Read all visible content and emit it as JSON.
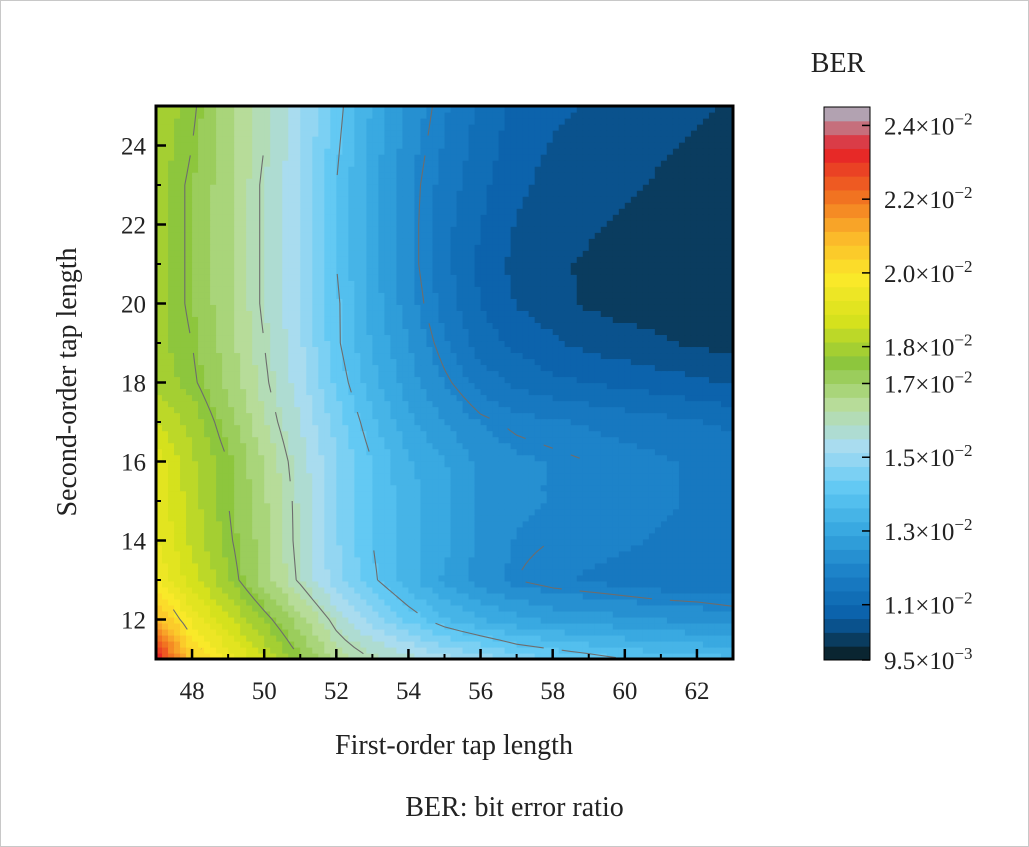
{
  "chart_data": {
    "type": "heatmap",
    "subtype": "filled-contour",
    "xlabel": "First-order tap length",
    "ylabel": "Second-order tap length",
    "xlim": [
      47,
      63
    ],
    "ylim": [
      11,
      25
    ],
    "xticks": [
      48,
      50,
      52,
      54,
      56,
      58,
      60,
      62
    ],
    "yticks": [
      12,
      14,
      16,
      18,
      20,
      22,
      24
    ],
    "colorbar": {
      "title": "BER",
      "range": [
        0.0095,
        0.0245
      ],
      "tick_labels": [
        {
          "value": 0.024,
          "mantissa": "2.4",
          "exponent": "−2"
        },
        {
          "value": 0.022,
          "mantissa": "2.2",
          "exponent": "−2"
        },
        {
          "value": 0.02,
          "mantissa": "2.0",
          "exponent": "−2"
        },
        {
          "value": 0.018,
          "mantissa": "1.8",
          "exponent": "−2"
        },
        {
          "value": 0.017,
          "mantissa": "1.7",
          "exponent": "−2"
        },
        {
          "value": 0.015,
          "mantissa": "1.5",
          "exponent": "−2"
        },
        {
          "value": 0.013,
          "mantissa": "1.3",
          "exponent": "−2"
        },
        {
          "value": 0.011,
          "mantissa": "1.1",
          "exponent": "−2"
        },
        {
          "value": 0.0095,
          "mantissa": "9.5",
          "exponent": "−3"
        }
      ],
      "colors": [
        "#0a1a1a",
        "#0a5fa8",
        "#1a7fc6",
        "#35a6df",
        "#5ec8f3",
        "#a8dcf2",
        "#b8dc9a",
        "#8cc63c",
        "#d8e21c",
        "#fbe92a",
        "#fbb62a",
        "#f06a20",
        "#e51f28",
        "#a8bccc"
      ]
    },
    "x": [
      47,
      48,
      49,
      50,
      51,
      52,
      53,
      54,
      55,
      56,
      57,
      58,
      59,
      60,
      61,
      62,
      63
    ],
    "y": [
      11,
      12,
      13,
      14,
      15,
      16,
      17,
      18,
      19,
      20,
      21,
      22,
      23,
      24,
      25
    ],
    "z": [
      [
        0.0235,
        0.0205,
        0.0195,
        0.0185,
        0.0175,
        0.0165,
        0.016,
        0.0157,
        0.0153,
        0.015,
        0.0146,
        0.0144,
        0.0142,
        0.014,
        0.0139,
        0.0138,
        0.0137
      ],
      [
        0.021,
        0.0195,
        0.0186,
        0.0177,
        0.0168,
        0.0158,
        0.015,
        0.0143,
        0.0137,
        0.0133,
        0.013,
        0.0128,
        0.0127,
        0.0126,
        0.0125,
        0.0124,
        0.0123
      ],
      [
        0.0196,
        0.0187,
        0.0178,
        0.0168,
        0.0159,
        0.0149,
        0.0141,
        0.0134,
        0.0128,
        0.0123,
        0.012,
        0.0118,
        0.0117,
        0.0116,
        0.0115,
        0.0115,
        0.0114
      ],
      [
        0.0193,
        0.0184,
        0.0176,
        0.0168,
        0.0158,
        0.0148,
        0.014,
        0.0134,
        0.013,
        0.0124,
        0.0121,
        0.012,
        0.0119,
        0.0118,
        0.0117,
        0.0117,
        0.0116
      ],
      [
        0.0192,
        0.0183,
        0.0175,
        0.0167,
        0.0158,
        0.0148,
        0.014,
        0.0134,
        0.013,
        0.0124,
        0.0122,
        0.0121,
        0.012,
        0.0119,
        0.0118,
        0.0117,
        0.0116
      ],
      [
        0.0191,
        0.0182,
        0.0175,
        0.0166,
        0.0157,
        0.0148,
        0.014,
        0.0133,
        0.0129,
        0.0124,
        0.0122,
        0.0121,
        0.012,
        0.0119,
        0.0118,
        0.0117,
        0.0116
      ],
      [
        0.0185,
        0.018,
        0.0172,
        0.0163,
        0.0155,
        0.0146,
        0.0137,
        0.013,
        0.0125,
        0.0121,
        0.0119,
        0.0118,
        0.0117,
        0.0116,
        0.0115,
        0.0114,
        0.0113
      ],
      [
        0.018,
        0.0176,
        0.0169,
        0.0161,
        0.0153,
        0.0143,
        0.0134,
        0.0127,
        0.0121,
        0.0116,
        0.0113,
        0.0111,
        0.011,
        0.0109,
        0.0108,
        0.0107,
        0.0106
      ],
      [
        0.0179,
        0.0175,
        0.0168,
        0.016,
        0.0152,
        0.0141,
        0.0132,
        0.0125,
        0.0118,
        0.0112,
        0.0109,
        0.0107,
        0.0105,
        0.0104,
        0.0103,
        0.0102,
        0.0101
      ],
      [
        0.0179,
        0.0174,
        0.0167,
        0.0159,
        0.0151,
        0.0141,
        0.0131,
        0.0123,
        0.0116,
        0.011,
        0.0106,
        0.0104,
        0.0102,
        0.0101,
        0.0101,
        0.01,
        0.01
      ],
      [
        0.0179,
        0.0174,
        0.0167,
        0.0159,
        0.0151,
        0.014,
        0.013,
        0.0122,
        0.0115,
        0.0109,
        0.0105,
        0.0103,
        0.0102,
        0.0101,
        0.0101,
        0.01,
        0.01
      ],
      [
        0.0179,
        0.0174,
        0.0167,
        0.0159,
        0.0151,
        0.014,
        0.013,
        0.0122,
        0.0115,
        0.011,
        0.0106,
        0.0104,
        0.0103,
        0.0102,
        0.0101,
        0.0101,
        0.01
      ],
      [
        0.0179,
        0.0174,
        0.0167,
        0.0159,
        0.0151,
        0.014,
        0.013,
        0.0122,
        0.0116,
        0.0111,
        0.0107,
        0.0105,
        0.0104,
        0.0103,
        0.0102,
        0.0101,
        0.01
      ],
      [
        0.018,
        0.0175,
        0.0168,
        0.016,
        0.0152,
        0.0141,
        0.0131,
        0.0123,
        0.0117,
        0.0112,
        0.0108,
        0.0106,
        0.0105,
        0.0104,
        0.0103,
        0.0102,
        0.0101
      ],
      [
        0.018,
        0.0176,
        0.0168,
        0.016,
        0.0152,
        0.0142,
        0.0132,
        0.0124,
        0.0118,
        0.0113,
        0.0109,
        0.0107,
        0.0106,
        0.0105,
        0.0104,
        0.0103,
        0.0102
      ]
    ],
    "contour_levels": [
      0.012,
      0.014,
      0.016,
      0.0175,
      0.02
    ]
  },
  "caption": "BER: bit error ratio"
}
